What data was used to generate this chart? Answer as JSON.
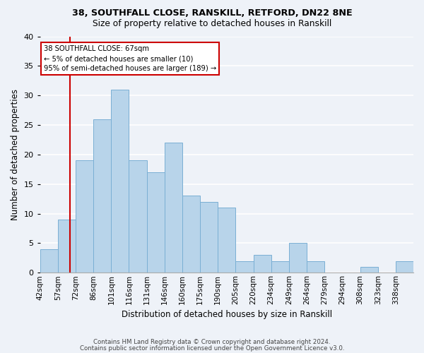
{
  "title1": "38, SOUTHFALL CLOSE, RANSKILL, RETFORD, DN22 8NE",
  "title2": "Size of property relative to detached houses in Ranskill",
  "xlabel": "Distribution of detached houses by size in Ranskill",
  "ylabel": "Number of detached properties",
  "categories": [
    "42sqm",
    "57sqm",
    "72sqm",
    "86sqm",
    "101sqm",
    "116sqm",
    "131sqm",
    "146sqm",
    "160sqm",
    "175sqm",
    "190sqm",
    "205sqm",
    "220sqm",
    "234sqm",
    "249sqm",
    "264sqm",
    "279sqm",
    "294sqm",
    "308sqm",
    "323sqm",
    "338sqm"
  ],
  "values": [
    4,
    9,
    19,
    26,
    31,
    19,
    17,
    22,
    13,
    12,
    11,
    2,
    3,
    2,
    5,
    2,
    0,
    0,
    1,
    0,
    2
  ],
  "bar_color": "#b8d4ea",
  "bar_edge_color": "#7aafd4",
  "vline_bar_index": 1.67,
  "annotation_text_line1": "38 SOUTHFALL CLOSE: 67sqm",
  "annotation_text_line2": "← 5% of detached houses are smaller (10)",
  "annotation_text_line3": "95% of semi-detached houses are larger (189) →",
  "annotation_box_color": "#ffffff",
  "annotation_box_edge_color": "#cc0000",
  "vline_color": "#cc0000",
  "ylim": [
    0,
    40
  ],
  "yticks": [
    0,
    5,
    10,
    15,
    20,
    25,
    30,
    35,
    40
  ],
  "footnote1": "Contains HM Land Registry data © Crown copyright and database right 2024.",
  "footnote2": "Contains public sector information licensed under the Open Government Licence v3.0.",
  "bg_color": "#eef2f8",
  "plot_bg_color": "#eef2f8",
  "grid_color": "#ffffff"
}
